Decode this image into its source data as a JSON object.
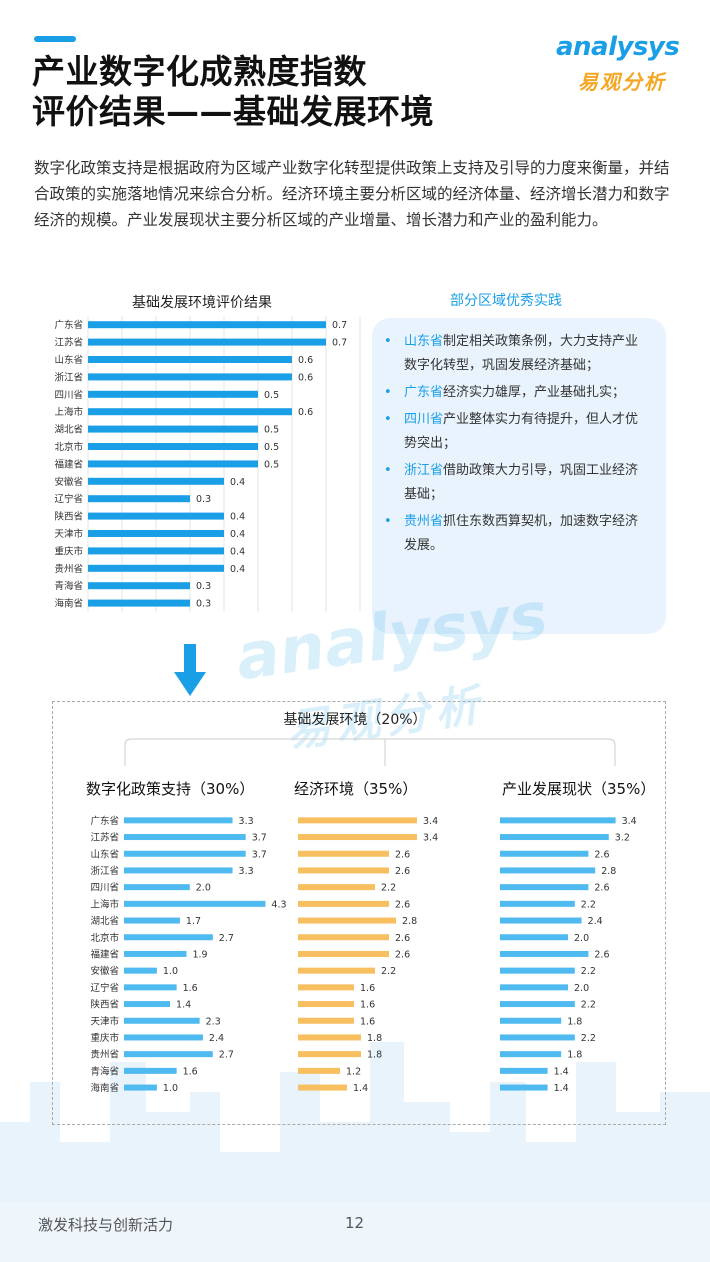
{
  "page": {
    "title_line1": "产业数字化成熟度指数",
    "title_line2": "评价结果——基础发展环境",
    "intro": "数字化政策支持是根据政府为区域产业数字化转型提供政策上支持及引导的力度来衡量，并结合政策的实施落地情况来综合分析。经济环境主要分析区域的经济体量、经济增长潜力和数字经济的规模。产业发展现状主要分析区域的产业增量、增长潜力和产业的盈利能力。",
    "footer": "激发科技与创新活力",
    "page_number": "12"
  },
  "logo": {
    "word": "analysys",
    "cn": "易观分析"
  },
  "practices": {
    "title": "部分区域优秀实践",
    "items": [
      {
        "province": "山东省",
        "text": "制定相关政策条例，大力支持产业数字化转型，巩固发展经济基础；"
      },
      {
        "province": "广东省",
        "text": "经济实力雄厚，产业基础扎实；"
      },
      {
        "province": "四川省",
        "text": "产业整体实力有待提升，但人才优势突出；"
      },
      {
        "province": "浙江省",
        "text": "借助政策大力引导，巩固工业经济基础；"
      },
      {
        "province": "贵州省",
        "text": "抓住东数西算契机，加速数字经济发展。"
      }
    ]
  },
  "colors": {
    "blue": "#1a9fe6",
    "light_blue": "#4fbaf0",
    "orange": "#f7bf5f",
    "title_blue": "#1a9fe6"
  },
  "section": {
    "title": "基础发展环境（20%）"
  },
  "chart_data": [
    {
      "type": "bar",
      "orientation": "horizontal",
      "title": "基础发展环境评价结果",
      "categories": [
        "广东省",
        "江苏省",
        "山东省",
        "浙江省",
        "四川省",
        "上海市",
        "湖北省",
        "北京市",
        "福建省",
        "安徽省",
        "辽宁省",
        "陕西省",
        "天津市",
        "重庆市",
        "贵州省",
        "青海省",
        "海南省"
      ],
      "values": [
        0.7,
        0.7,
        0.6,
        0.6,
        0.5,
        0.6,
        0.5,
        0.5,
        0.5,
        0.4,
        0.3,
        0.4,
        0.4,
        0.4,
        0.4,
        0.3,
        0.3
      ],
      "xlim": [
        0,
        0.8
      ],
      "grid": true,
      "color": "#1a9fe6"
    },
    {
      "type": "bar",
      "orientation": "horizontal",
      "title": "数字化政策支持（30%）",
      "categories": [
        "广东省",
        "江苏省",
        "山东省",
        "浙江省",
        "四川省",
        "上海市",
        "湖北省",
        "北京市",
        "福建省",
        "安徽省",
        "辽宁省",
        "陕西省",
        "天津市",
        "重庆市",
        "贵州省",
        "青海省",
        "海南省"
      ],
      "values": [
        3.3,
        3.7,
        3.7,
        3.3,
        2.0,
        4.3,
        1.7,
        2.7,
        1.9,
        1.0,
        1.6,
        1.4,
        2.3,
        2.4,
        2.7,
        1.6,
        1.0
      ],
      "xlim": [
        0,
        4.5
      ],
      "color": "#4fbaf0"
    },
    {
      "type": "bar",
      "orientation": "horizontal",
      "title": "经济环境（35%）",
      "categories": [
        "广东省",
        "江苏省",
        "山东省",
        "浙江省",
        "四川省",
        "上海市",
        "湖北省",
        "北京市",
        "福建省",
        "安徽省",
        "辽宁省",
        "陕西省",
        "天津市",
        "重庆市",
        "贵州省",
        "青海省",
        "海南省"
      ],
      "values": [
        3.4,
        3.4,
        2.6,
        2.6,
        2.2,
        2.6,
        2.8,
        2.6,
        2.6,
        2.2,
        1.6,
        1.6,
        1.6,
        1.8,
        1.8,
        1.2,
        1.4
      ],
      "xlim": [
        0,
        4
      ],
      "color": "#f7bf5f"
    },
    {
      "type": "bar",
      "orientation": "horizontal",
      "title": "产业发展现状（35%）",
      "categories": [
        "广东省",
        "江苏省",
        "山东省",
        "浙江省",
        "四川省",
        "上海市",
        "湖北省",
        "北京市",
        "福建省",
        "安徽省",
        "辽宁省",
        "陕西省",
        "天津市",
        "重庆市",
        "贵州省",
        "青海省",
        "海南省"
      ],
      "values": [
        3.4,
        3.2,
        2.6,
        2.8,
        2.6,
        2.2,
        2.4,
        2.0,
        2.6,
        2.2,
        2.0,
        2.2,
        1.8,
        2.2,
        1.8,
        1.4,
        1.4
      ],
      "xlim": [
        0,
        4
      ],
      "color": "#4fbaf0"
    }
  ]
}
